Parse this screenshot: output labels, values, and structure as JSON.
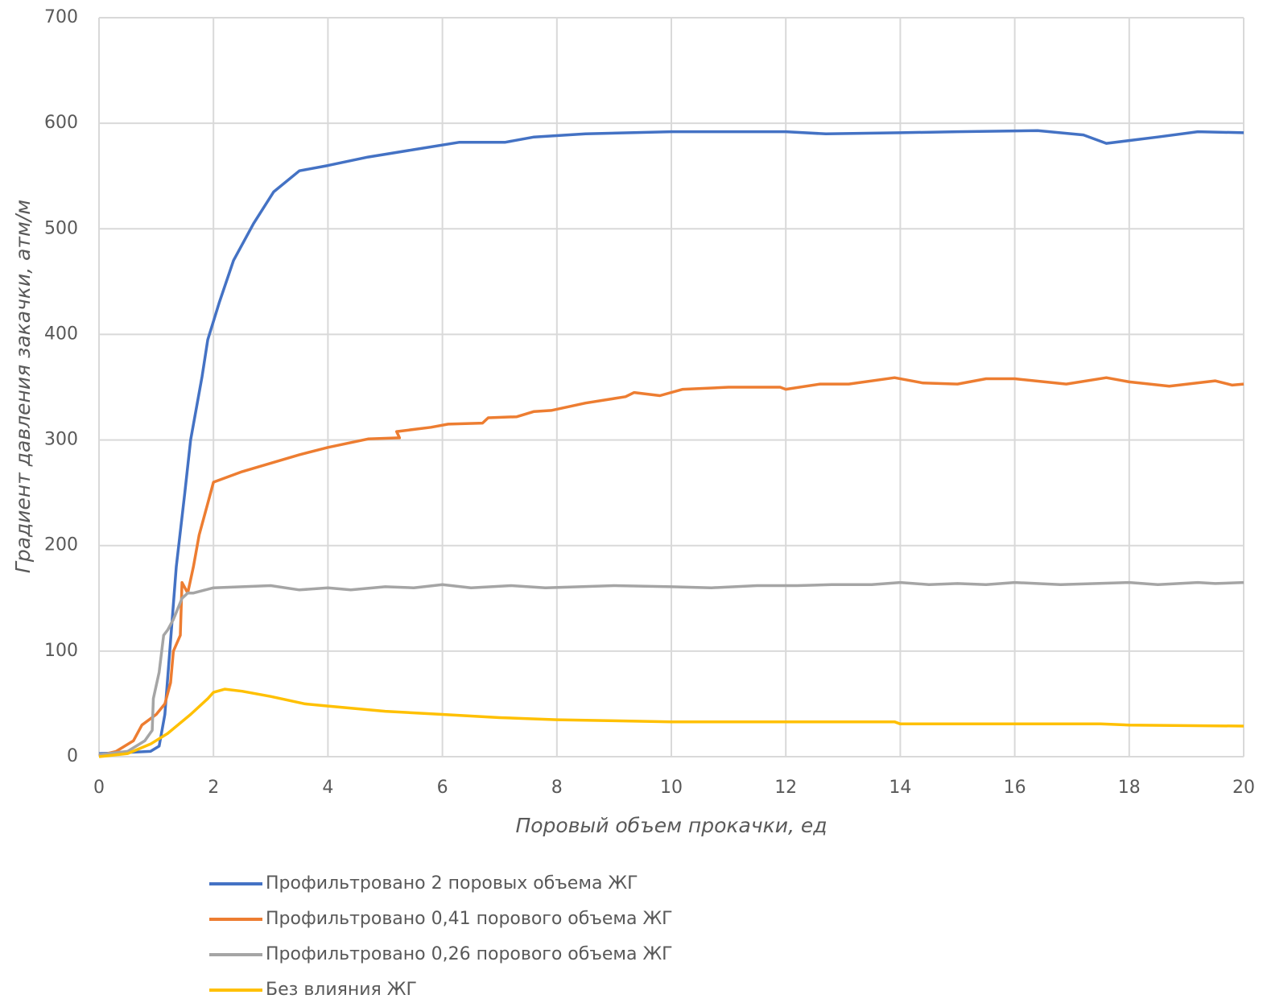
{
  "chart_data": {
    "type": "line",
    "x_label": "Поровый объем прокачки, ед",
    "y_label": "Градиент давления закачки, атм/м",
    "xlim": [
      0,
      20
    ],
    "xticks": [
      0,
      2,
      4,
      6,
      8,
      10,
      12,
      14,
      16,
      18,
      20
    ],
    "ylim": [
      0,
      700
    ],
    "yticks": [
      0,
      100,
      200,
      300,
      400,
      500,
      600,
      700
    ],
    "grid": true,
    "legend": "bottom",
    "series": [
      {
        "name": "Профильтровано 2 поровых объема ЖГ",
        "color": "#4472c4",
        "x": [
          0,
          0.5,
          0.9,
          1.05,
          1.15,
          1.25,
          1.35,
          1.5,
          1.6,
          1.8,
          1.9,
          2.1,
          2.35,
          2.7,
          3.05,
          3.5,
          4,
          4.7,
          5.5,
          6.3,
          7.1,
          7.6,
          8.5,
          10,
          12,
          12.7,
          14,
          15,
          16.4,
          17.2,
          17.6,
          18.5,
          19.2,
          20
        ],
        "values": [
          3,
          4,
          5,
          10,
          40,
          110,
          180,
          250,
          300,
          360,
          395,
          430,
          470,
          505,
          535,
          555,
          560,
          568,
          575,
          582,
          582,
          587,
          590,
          592,
          592,
          590,
          591,
          592,
          593,
          589,
          581,
          587,
          592,
          591
        ]
      },
      {
        "name": "Профильтровано 0,41 порового объема ЖГ",
        "color": "#ed7d31",
        "x": [
          0,
          0.3,
          0.6,
          0.75,
          1.0,
          1.15,
          1.25,
          1.3,
          1.42,
          1.45,
          1.55,
          1.65,
          1.75,
          1.9,
          2.0,
          2.5,
          3,
          3.5,
          4,
          4.7,
          5.25,
          5.2,
          5.8,
          6.1,
          6.7,
          6.8,
          7.3,
          7.6,
          7.9,
          8.5,
          9.2,
          9.35,
          9.8,
          10.2,
          11,
          11.9,
          12,
          12.6,
          13.1,
          13.9,
          14.4,
          15,
          15.5,
          16,
          16.9,
          17.6,
          18,
          18.7,
          19.5,
          19.8,
          20
        ],
        "values": [
          1,
          5,
          15,
          30,
          40,
          50,
          70,
          100,
          115,
          165,
          155,
          180,
          210,
          240,
          260,
          270,
          278,
          286,
          293,
          301,
          302,
          308,
          312,
          315,
          316,
          321,
          322,
          327,
          328,
          335,
          341,
          345,
          342,
          348,
          350,
          350,
          348,
          353,
          353,
          359,
          354,
          353,
          358,
          358,
          353,
          359,
          355,
          351,
          356,
          352,
          353
        ]
      },
      {
        "name": "Профильтровано 0,26 порового объема ЖГ",
        "color": "#a5a5a5",
        "x": [
          0,
          0.5,
          0.8,
          0.93,
          0.95,
          1.05,
          1.13,
          1.2,
          1.3,
          1.45,
          1.55,
          1.65,
          2,
          2.5,
          3,
          3.5,
          4,
          4.4,
          5,
          5.5,
          6,
          6.5,
          7.2,
          7.8,
          9,
          10,
          10.7,
          11.5,
          12.2,
          12.8,
          13.5,
          14,
          14.5,
          15,
          15.5,
          16,
          16.8,
          18,
          18.5,
          19.2,
          19.5,
          20
        ],
        "values": [
          2,
          5,
          15,
          25,
          55,
          80,
          115,
          120,
          130,
          150,
          155,
          155,
          160,
          161,
          162,
          158,
          160,
          158,
          161,
          160,
          163,
          160,
          162,
          160,
          162,
          161,
          160,
          162,
          162,
          163,
          163,
          165,
          163,
          164,
          163,
          165,
          163,
          165,
          163,
          165,
          164,
          165
        ]
      },
      {
        "name": "Без влияния ЖГ",
        "color": "#ffc000",
        "x": [
          0,
          0.5,
          0.9,
          1.2,
          1.6,
          1.9,
          2,
          2.2,
          2.5,
          3,
          3.6,
          4,
          5,
          6,
          7,
          8,
          9,
          10,
          12,
          13.9,
          14,
          16,
          17.5,
          18,
          20
        ],
        "values": [
          0,
          3,
          12,
          22,
          40,
          55,
          61,
          64,
          62,
          57,
          50,
          48,
          43,
          40,
          37,
          35,
          34,
          33,
          33,
          33,
          31,
          31,
          31,
          30,
          29
        ]
      }
    ]
  }
}
